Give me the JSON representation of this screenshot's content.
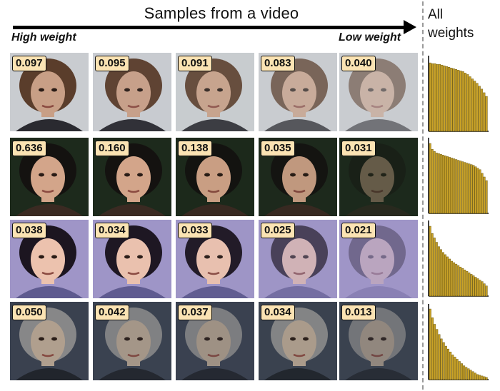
{
  "header": {
    "title": "Samples from a video",
    "high_label": "High weight",
    "low_label": "Low weight",
    "all_line1": "All",
    "all_line2": "weights"
  },
  "rows": [
    {
      "weights": [
        "0.097",
        "0.095",
        "0.091",
        "0.083",
        "0.040"
      ],
      "palette": {
        "bg": "#c9ccd0",
        "hair": "#5a3d2b",
        "skin": "#c89f86",
        "cloth": "#2a2a30"
      },
      "fades": [
        0,
        0.05,
        0.12,
        0.28,
        0.45
      ]
    },
    {
      "weights": [
        "0.636",
        "0.160",
        "0.138",
        "0.035",
        "0.031"
      ],
      "palette": {
        "bg": "#1d2a1c",
        "hair": "#141210",
        "skin": "#d3a58a",
        "cloth": "#3a2a22"
      },
      "fades": [
        0,
        0,
        0.05,
        0.1,
        0.6
      ]
    },
    {
      "weights": [
        "0.038",
        "0.034",
        "0.033",
        "0.025",
        "0.021"
      ],
      "palette": {
        "bg": "#9f95c7",
        "hair": "#1c1520",
        "skin": "#ecc2ae",
        "cloth": "#5e5a8f"
      },
      "fades": [
        0,
        0.02,
        0.05,
        0.35,
        0.65
      ]
    },
    {
      "weights": [
        "0.050",
        "0.042",
        "0.037",
        "0.034",
        "0.013"
      ],
      "palette": {
        "bg": "#3a4250",
        "hair": "#8c8c8c",
        "skin": "#b7a592",
        "cloth": "#20242b"
      },
      "fades": [
        0.05,
        0.15,
        0.2,
        0.1,
        0.3
      ]
    }
  ],
  "chart_data": [
    {
      "type": "bar",
      "values": [
        0.94,
        0.93,
        0.93,
        0.92,
        0.92,
        0.91,
        0.9,
        0.89,
        0.88,
        0.87,
        0.86,
        0.85,
        0.84,
        0.83,
        0.82,
        0.8,
        0.78,
        0.75,
        0.72,
        0.69,
        0.66,
        0.62,
        0.58,
        0.53,
        0.48
      ]
    },
    {
      "type": "bar",
      "values": [
        0.96,
        0.88,
        0.85,
        0.83,
        0.82,
        0.81,
        0.8,
        0.79,
        0.78,
        0.77,
        0.76,
        0.75,
        0.74,
        0.73,
        0.72,
        0.71,
        0.7,
        0.69,
        0.68,
        0.67,
        0.66,
        0.64,
        0.62,
        0.6,
        0.55,
        0.5,
        0.45
      ]
    },
    {
      "type": "bar",
      "values": [
        0.96,
        0.86,
        0.8,
        0.74,
        0.68,
        0.64,
        0.6,
        0.57,
        0.54,
        0.51,
        0.48,
        0.46,
        0.44,
        0.42,
        0.4,
        0.38,
        0.36,
        0.34,
        0.32,
        0.3,
        0.28,
        0.26,
        0.24,
        0.22,
        0.2,
        0.17,
        0.14
      ]
    },
    {
      "type": "bar",
      "values": [
        0.97,
        0.85,
        0.76,
        0.69,
        0.62,
        0.56,
        0.51,
        0.46,
        0.42,
        0.38,
        0.34,
        0.31,
        0.28,
        0.25,
        0.22,
        0.19,
        0.17,
        0.15,
        0.13,
        0.11,
        0.09,
        0.07,
        0.06,
        0.05,
        0.04,
        0.03
      ]
    }
  ],
  "colors": {
    "badge_fill": "#fbe3b3",
    "bar_fill": "#c9a227",
    "bar_stroke": "#6e5a10"
  }
}
